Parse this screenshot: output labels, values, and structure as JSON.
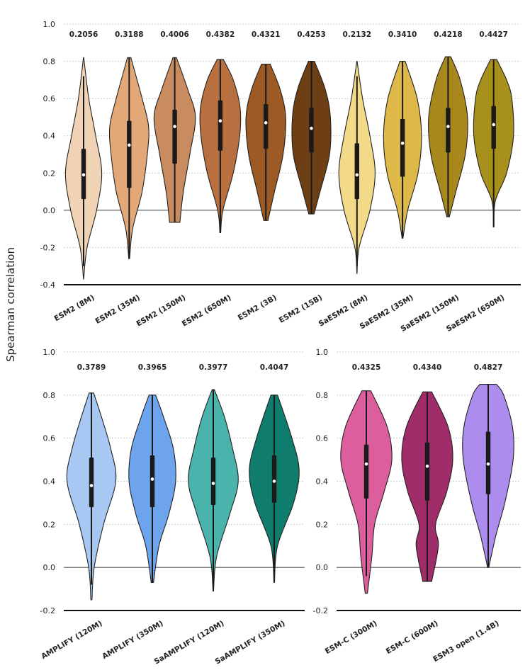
{
  "y_axis_label": "Spearman correlation",
  "chart_data": [
    {
      "type": "violin",
      "ylim": [
        -0.4,
        1.0
      ],
      "yticks": [
        "1.0",
        "0.8",
        "0.6",
        "0.4",
        "0.2",
        "0.0",
        "-0.2",
        "-0.4"
      ],
      "grid": true,
      "categories": [
        "ESM2 (8M)",
        "ESM2 (35M)",
        "ESM2 (150M)",
        "ESM2 (650M)",
        "ESM2 (3B)",
        "ESM2 (15B)",
        "SaESM2 (8M)",
        "SaESM2 (35M)",
        "SaESM2 (150M)",
        "SaESM2 (650M)"
      ],
      "labels": [
        "0.2056",
        "0.3188",
        "0.4006",
        "0.4382",
        "0.4321",
        "0.4253",
        "0.2132",
        "0.3410",
        "0.4218",
        "0.4427"
      ],
      "colors": [
        "#f0d2b4",
        "#e2a878",
        "#c98c60",
        "#b87040",
        "#9c5a24",
        "#6e3e14",
        "#f2da88",
        "#deb848",
        "#a8881c",
        "#a8901c"
      ],
      "violins": [
        {
          "min": -0.37,
          "max": 0.82,
          "q1": 0.06,
          "median": 0.19,
          "q3": 0.33,
          "wlo": -0.3,
          "whi": 0.72,
          "shape": [
            [
              -0.37,
              0.002
            ],
            [
              -0.2,
              0.08
            ],
            [
              0.0,
              0.3
            ],
            [
              0.2,
              0.42
            ],
            [
              0.4,
              0.28
            ],
            [
              0.6,
              0.12
            ],
            [
              0.82,
              0.004
            ]
          ]
        },
        {
          "min": -0.26,
          "max": 0.82,
          "q1": 0.12,
          "median": 0.35,
          "q3": 0.48,
          "wlo": -0.26,
          "whi": 0.82,
          "shape": [
            [
              -0.26,
              0.01
            ],
            [
              -0.1,
              0.08
            ],
            [
              0.1,
              0.3
            ],
            [
              0.3,
              0.42
            ],
            [
              0.45,
              0.45
            ],
            [
              0.6,
              0.3
            ],
            [
              0.82,
              0.04
            ]
          ]
        },
        {
          "min": -0.065,
          "max": 0.82,
          "q1": 0.25,
          "median": 0.45,
          "q3": 0.54,
          "wlo": -0.065,
          "whi": 0.82,
          "shape": [
            [
              -0.065,
              0.12
            ],
            [
              0.1,
              0.2
            ],
            [
              0.3,
              0.35
            ],
            [
              0.5,
              0.48
            ],
            [
              0.65,
              0.3
            ],
            [
              0.82,
              0.04
            ]
          ]
        },
        {
          "min": -0.12,
          "max": 0.81,
          "q1": 0.32,
          "median": 0.48,
          "q3": 0.59,
          "wlo": -0.12,
          "whi": 0.81,
          "shape": [
            [
              -0.12,
              0.01
            ],
            [
              0.0,
              0.06
            ],
            [
              0.2,
              0.3
            ],
            [
              0.4,
              0.45
            ],
            [
              0.55,
              0.46
            ],
            [
              0.7,
              0.3
            ],
            [
              0.81,
              0.07
            ]
          ]
        },
        {
          "min": -0.055,
          "max": 0.785,
          "q1": 0.33,
          "median": 0.47,
          "q3": 0.57,
          "wlo": -0.055,
          "whi": 0.785,
          "shape": [
            [
              -0.055,
              0.05
            ],
            [
              0.1,
              0.2
            ],
            [
              0.3,
              0.4
            ],
            [
              0.5,
              0.46
            ],
            [
              0.65,
              0.33
            ],
            [
              0.785,
              0.1
            ]
          ]
        },
        {
          "min": -0.02,
          "max": 0.8,
          "q1": 0.31,
          "median": 0.44,
          "q3": 0.55,
          "wlo": -0.02,
          "whi": 0.8,
          "shape": [
            [
              -0.02,
              0.06
            ],
            [
              0.1,
              0.2
            ],
            [
              0.3,
              0.42
            ],
            [
              0.5,
              0.44
            ],
            [
              0.65,
              0.32
            ],
            [
              0.8,
              0.07
            ]
          ]
        },
        {
          "min": -0.34,
          "max": 0.8,
          "q1": 0.06,
          "median": 0.19,
          "q3": 0.36,
          "wlo": -0.3,
          "whi": 0.72,
          "shape": [
            [
              -0.34,
              0.002
            ],
            [
              -0.2,
              0.05
            ],
            [
              0.0,
              0.3
            ],
            [
              0.2,
              0.42
            ],
            [
              0.4,
              0.3
            ],
            [
              0.6,
              0.13
            ],
            [
              0.8,
              0.004
            ]
          ]
        },
        {
          "min": -0.15,
          "max": 0.8,
          "q1": 0.18,
          "median": 0.36,
          "q3": 0.49,
          "wlo": -0.15,
          "whi": 0.8,
          "shape": [
            [
              -0.15,
              0.01
            ],
            [
              0.0,
              0.12
            ],
            [
              0.2,
              0.36
            ],
            [
              0.4,
              0.44
            ],
            [
              0.6,
              0.34
            ],
            [
              0.8,
              0.06
            ]
          ]
        },
        {
          "min": -0.035,
          "max": 0.825,
          "q1": 0.31,
          "median": 0.45,
          "q3": 0.55,
          "wlo": -0.035,
          "whi": 0.825,
          "shape": [
            [
              -0.035,
              0.03
            ],
            [
              0.1,
              0.18
            ],
            [
              0.3,
              0.4
            ],
            [
              0.5,
              0.45
            ],
            [
              0.7,
              0.28
            ],
            [
              0.825,
              0.06
            ]
          ]
        },
        {
          "min": -0.09,
          "max": 0.81,
          "q1": 0.33,
          "median": 0.46,
          "q3": 0.56,
          "wlo": -0.09,
          "whi": 0.81,
          "shape": [
            [
              -0.09,
              0.005
            ],
            [
              0.05,
              0.04
            ],
            [
              0.2,
              0.3
            ],
            [
              0.4,
              0.46
            ],
            [
              0.6,
              0.42
            ],
            [
              0.7,
              0.3
            ],
            [
              0.81,
              0.07
            ]
          ]
        }
      ]
    },
    {
      "type": "violin",
      "ylim": [
        -0.2,
        1.0
      ],
      "yticks": [
        "1.0",
        "0.8",
        "0.6",
        "0.4",
        "0.2",
        "0.0",
        "-0.2"
      ],
      "grid": true,
      "categories": [
        "AMPLIFY (120M)",
        "AMPLIFY (350M)",
        "SaAMPLIFY (120M)",
        "SaAMPLIFY (350M)"
      ],
      "labels": [
        "0.3789",
        "0.3965",
        "0.3977",
        "0.4047"
      ],
      "colors": [
        "#a8c8f4",
        "#6ea4ec",
        "#4ab4ac",
        "#107c6c"
      ],
      "violins": [
        {
          "min": -0.15,
          "max": 0.81,
          "q1": 0.28,
          "median": 0.38,
          "q3": 0.51,
          "wlo": -0.08,
          "whi": 0.81,
          "shape": [
            [
              -0.15,
              0.01
            ],
            [
              0.0,
              0.05
            ],
            [
              0.2,
              0.22
            ],
            [
              0.4,
              0.44
            ],
            [
              0.55,
              0.35
            ],
            [
              0.7,
              0.18
            ],
            [
              0.81,
              0.04
            ]
          ]
        },
        {
          "min": -0.07,
          "max": 0.8,
          "q1": 0.28,
          "median": 0.41,
          "q3": 0.52,
          "wlo": -0.07,
          "whi": 0.8,
          "shape": [
            [
              -0.07,
              0.02
            ],
            [
              0.1,
              0.12
            ],
            [
              0.25,
              0.3
            ],
            [
              0.4,
              0.42
            ],
            [
              0.55,
              0.38
            ],
            [
              0.7,
              0.2
            ],
            [
              0.8,
              0.06
            ]
          ]
        },
        {
          "min": -0.11,
          "max": 0.825,
          "q1": 0.29,
          "median": 0.39,
          "q3": 0.51,
          "wlo": -0.11,
          "whi": 0.825,
          "shape": [
            [
              -0.11,
              0.005
            ],
            [
              0.05,
              0.06
            ],
            [
              0.25,
              0.3
            ],
            [
              0.4,
              0.45
            ],
            [
              0.55,
              0.35
            ],
            [
              0.7,
              0.2
            ],
            [
              0.825,
              0.02
            ]
          ]
        },
        {
          "min": -0.07,
          "max": 0.8,
          "q1": 0.3,
          "median": 0.4,
          "q3": 0.52,
          "wlo": -0.07,
          "whi": 0.8,
          "shape": [
            [
              -0.07,
              0.005
            ],
            [
              0.1,
              0.06
            ],
            [
              0.3,
              0.35
            ],
            [
              0.45,
              0.45
            ],
            [
              0.6,
              0.32
            ],
            [
              0.8,
              0.06
            ]
          ]
        }
      ]
    },
    {
      "type": "violin",
      "ylim": [
        -0.2,
        1.0
      ],
      "yticks": [
        "1.0",
        "0.8",
        "0.6",
        "0.4",
        "0.2",
        "0.0",
        "-0.2"
      ],
      "grid": true,
      "categories": [
        "ESM-C (300M)",
        "ESM-C (600M)",
        "ESM3 open (1.4B)"
      ],
      "labels": [
        "0.4325",
        "0.4340",
        "0.4827"
      ],
      "colors": [
        "#dc5e9c",
        "#a02c6a",
        "#ac8cec"
      ],
      "violins": [
        {
          "min": -0.12,
          "max": 0.82,
          "q1": 0.32,
          "median": 0.48,
          "q3": 0.57,
          "wlo": -0.04,
          "whi": 0.82,
          "shape": [
            [
              -0.12,
              0.02
            ],
            [
              0.05,
              0.1
            ],
            [
              0.2,
              0.15
            ],
            [
              0.35,
              0.32
            ],
            [
              0.5,
              0.46
            ],
            [
              0.65,
              0.38
            ],
            [
              0.82,
              0.08
            ]
          ]
        },
        {
          "min": -0.065,
          "max": 0.815,
          "q1": 0.31,
          "median": 0.47,
          "q3": 0.58,
          "wlo": -0.065,
          "whi": 0.815,
          "shape": [
            [
              -0.065,
              0.08
            ],
            [
              0.1,
              0.2
            ],
            [
              0.2,
              0.15
            ],
            [
              0.35,
              0.35
            ],
            [
              0.5,
              0.46
            ],
            [
              0.65,
              0.38
            ],
            [
              0.815,
              0.08
            ]
          ]
        },
        {
          "min": 0.0,
          "max": 0.85,
          "q1": 0.34,
          "median": 0.48,
          "q3": 0.63,
          "wlo": 0.0,
          "whi": 0.85,
          "shape": [
            [
              0.0,
              0.01
            ],
            [
              0.15,
              0.14
            ],
            [
              0.3,
              0.3
            ],
            [
              0.5,
              0.45
            ],
            [
              0.65,
              0.44
            ],
            [
              0.8,
              0.28
            ],
            [
              0.85,
              0.15
            ]
          ]
        }
      ]
    }
  ]
}
